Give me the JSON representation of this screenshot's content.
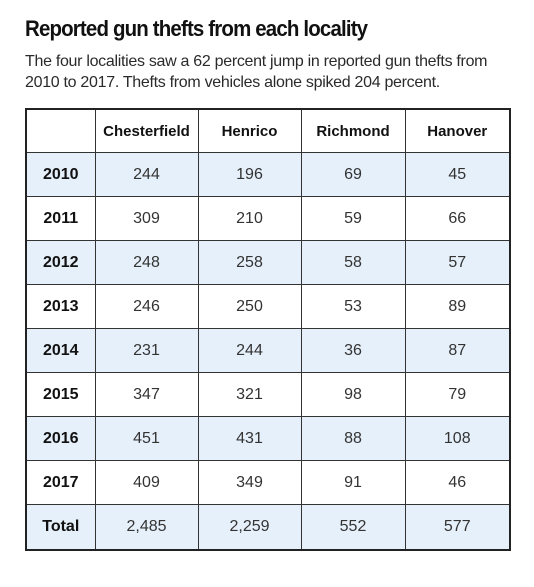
{
  "chart_data": {
    "type": "table",
    "title": "Reported gun thefts from each locality",
    "subtitle": "The four localities saw a 62 percent jump in reported gun thefts from 2010 to 2017. Thefts from vehicles alone spiked 204 percent.",
    "corner_label": "",
    "columns": [
      "Chesterfield",
      "Henrico",
      "Richmond",
      "Hanover"
    ],
    "rows": [
      {
        "year": "2010",
        "values": [
          "244",
          "196",
          "69",
          "45"
        ]
      },
      {
        "year": "2011",
        "values": [
          "309",
          "210",
          "59",
          "66"
        ]
      },
      {
        "year": "2012",
        "values": [
          "248",
          "258",
          "58",
          "57"
        ]
      },
      {
        "year": "2013",
        "values": [
          "246",
          "250",
          "53",
          "89"
        ]
      },
      {
        "year": "2014",
        "values": [
          "231",
          "244",
          "36",
          "87"
        ]
      },
      {
        "year": "2015",
        "values": [
          "347",
          "321",
          "98",
          "79"
        ]
      },
      {
        "year": "2016",
        "values": [
          "451",
          "431",
          "88",
          "108"
        ]
      },
      {
        "year": "2017",
        "values": [
          "409",
          "349",
          "91",
          "46"
        ]
      }
    ],
    "total": {
      "label": "Total",
      "values": [
        "2,485",
        "2,259",
        "552",
        "577"
      ]
    },
    "shaded_row_color": "#e6f0fa",
    "border_color": "#222222"
  }
}
